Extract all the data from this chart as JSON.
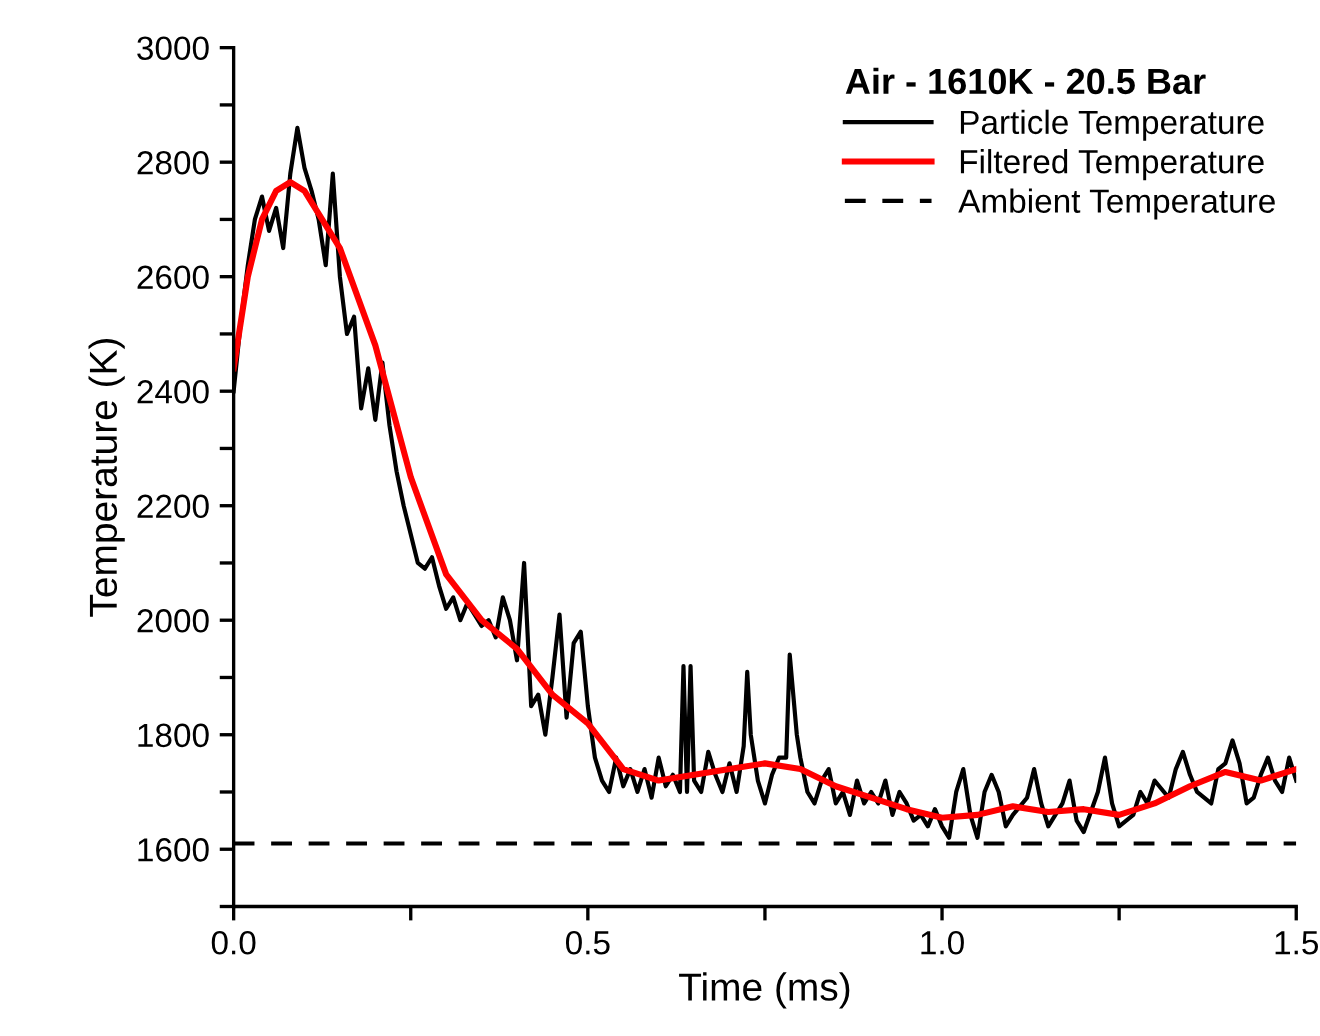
{
  "chart_data": {
    "type": "line",
    "xlabel": "Time (ms)",
    "ylabel": "Temperature (K)",
    "legend_title": "Air - 1610K - 20.5 Bar",
    "legend": "top right",
    "grid": false,
    "marker": "none",
    "xlim": [
      0,
      1.5
    ],
    "ylim": [
      1500,
      3000
    ],
    "xticks": [
      {
        "value": 0,
        "label": "0.0"
      },
      {
        "value": 0.25,
        "label": null
      },
      {
        "value": 0.5,
        "label": "0.5"
      },
      {
        "value": 0.75,
        "label": null
      },
      {
        "value": 1.0,
        "label": "1.0"
      },
      {
        "value": 1.25,
        "label": null
      },
      {
        "value": 1.5,
        "label": "1.5"
      }
    ],
    "yticks": [
      {
        "value": 1500,
        "label": null
      },
      1600,
      {
        "value": 1700,
        "label": null
      },
      1800,
      {
        "value": 1900,
        "label": null
      },
      2000,
      {
        "value": 2100,
        "label": null
      },
      2200,
      {
        "value": 2300,
        "label": null
      },
      2400,
      {
        "value": 2500,
        "label": null
      },
      2600,
      {
        "value": 2700,
        "label": null
      },
      2800,
      {
        "value": 2900,
        "label": null
      },
      3000
    ],
    "series": [
      {
        "name": "Particle Temperature",
        "color": "#000000",
        "line_style": "solid",
        "x": [
          0,
          0.01,
          0.02,
          0.03,
          0.04,
          0.05,
          0.06,
          0.07,
          0.08,
          0.09,
          0.1,
          0.11,
          0.12,
          0.13,
          0.14,
          0.15,
          0.16,
          0.17,
          0.18,
          0.19,
          0.2,
          0.21,
          0.22,
          0.23,
          0.24,
          0.25,
          0.26,
          0.27,
          0.28,
          0.29,
          0.3,
          0.31,
          0.32,
          0.33,
          0.34,
          0.35,
          0.36,
          0.37,
          0.38,
          0.39,
          0.4,
          0.41,
          0.42,
          0.43,
          0.44,
          0.45,
          0.46,
          0.47,
          0.48,
          0.49,
          0.5,
          0.51,
          0.52,
          0.53,
          0.54,
          0.55,
          0.56,
          0.57,
          0.58,
          0.59,
          0.6,
          0.61,
          0.62,
          0.63,
          0.635,
          0.64,
          0.645,
          0.65,
          0.66,
          0.67,
          0.68,
          0.69,
          0.7,
          0.71,
          0.72,
          0.725,
          0.73,
          0.74,
          0.75,
          0.76,
          0.77,
          0.78,
          0.785,
          0.795,
          0.8,
          0.81,
          0.82,
          0.83,
          0.84,
          0.85,
          0.86,
          0.87,
          0.88,
          0.89,
          0.9,
          0.91,
          0.92,
          0.93,
          0.94,
          0.95,
          0.96,
          0.97,
          0.98,
          0.99,
          1.0,
          1.01,
          1.02,
          1.03,
          1.04,
          1.05,
          1.06,
          1.07,
          1.08,
          1.09,
          1.1,
          1.12,
          1.13,
          1.14,
          1.15,
          1.17,
          1.18,
          1.19,
          1.2,
          1.22,
          1.23,
          1.24,
          1.25,
          1.27,
          1.28,
          1.29,
          1.3,
          1.32,
          1.33,
          1.34,
          1.35,
          1.36,
          1.38,
          1.39,
          1.4,
          1.41,
          1.42,
          1.43,
          1.44,
          1.45,
          1.46,
          1.47,
          1.48,
          1.49,
          1.5
        ],
        "values": [
          2400,
          2520,
          2620,
          2700,
          2740,
          2680,
          2720,
          2650,
          2780,
          2860,
          2790,
          2750,
          2700,
          2620,
          2780,
          2600,
          2500,
          2530,
          2370,
          2440,
          2350,
          2450,
          2340,
          2260,
          2200,
          2150,
          2100,
          2090,
          2110,
          2060,
          2020,
          2040,
          2000,
          2030,
          2010,
          1990,
          2000,
          1970,
          2040,
          2000,
          1930,
          2100,
          1850,
          1870,
          1800,
          1900,
          2010,
          1830,
          1960,
          1980,
          1850,
          1760,
          1720,
          1700,
          1760,
          1710,
          1740,
          1700,
          1740,
          1690,
          1760,
          1710,
          1730,
          1700,
          1920,
          1700,
          1920,
          1720,
          1700,
          1770,
          1730,
          1700,
          1750,
          1700,
          1780,
          1910,
          1800,
          1720,
          1680,
          1730,
          1760,
          1760,
          1940,
          1800,
          1760,
          1700,
          1680,
          1720,
          1740,
          1680,
          1700,
          1660,
          1720,
          1680,
          1700,
          1680,
          1720,
          1660,
          1700,
          1680,
          1650,
          1660,
          1640,
          1670,
          1640,
          1620,
          1700,
          1740,
          1660,
          1620,
          1700,
          1730,
          1700,
          1640,
          1660,
          1690,
          1740,
          1680,
          1640,
          1680,
          1720,
          1650,
          1630,
          1700,
          1760,
          1680,
          1640,
          1660,
          1700,
          1680,
          1720,
          1690,
          1740,
          1770,
          1730,
          1700,
          1680,
          1740,
          1750,
          1790,
          1750,
          1680,
          1690,
          1730,
          1760,
          1720,
          1700,
          1760,
          1720
        ]
      },
      {
        "name": "Filtered Temperature",
        "color": "#ff0000",
        "line_style": "solid",
        "x": [
          0,
          0.02,
          0.04,
          0.06,
          0.08,
          0.1,
          0.15,
          0.2,
          0.25,
          0.3,
          0.35,
          0.4,
          0.45,
          0.5,
          0.55,
          0.6,
          0.65,
          0.7,
          0.75,
          0.8,
          0.85,
          0.9,
          0.95,
          1.0,
          1.05,
          1.1,
          1.15,
          1.2,
          1.25,
          1.3,
          1.35,
          1.4,
          1.45,
          1.5
        ],
        "values": [
          2440,
          2600,
          2700,
          2750,
          2765,
          2750,
          2650,
          2480,
          2250,
          2080,
          2000,
          1950,
          1870,
          1820,
          1740,
          1720,
          1730,
          1740,
          1750,
          1740,
          1710,
          1690,
          1670,
          1655,
          1660,
          1675,
          1665,
          1670,
          1660,
          1680,
          1710,
          1735,
          1720,
          1740
        ]
      },
      {
        "name": "Ambient Temperature",
        "color": "#000000",
        "line_style": "dashed",
        "x": [
          0,
          1.5
        ],
        "values": [
          1610,
          1610
        ]
      }
    ]
  }
}
